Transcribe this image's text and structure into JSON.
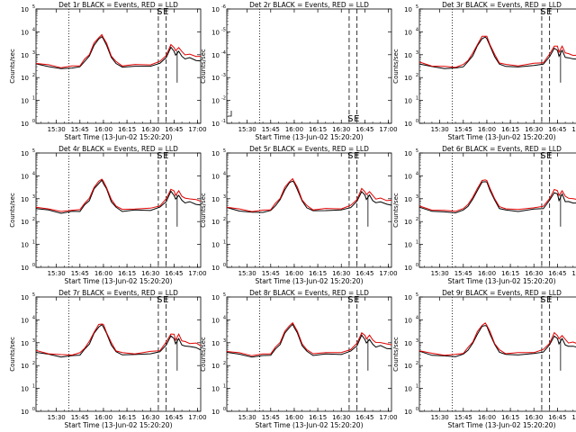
{
  "chart_data": {
    "type": "line",
    "x_label": "Start Time (13-Jun-02 15:20:20)",
    "y_label": "Counts/sec",
    "y_scale": "log",
    "x_range": [
      "15:17",
      "17:02"
    ],
    "x_ticks": [
      "15:30",
      "15:45",
      "16:00",
      "16:15",
      "16:30",
      "16:45",
      "17:00"
    ],
    "x_minutes": [
      690,
      705,
      720,
      735,
      750,
      765,
      780
    ],
    "series_legend": [
      "BLACK = Events",
      "RED = LLD"
    ],
    "colors": {
      "events": "#000000",
      "lld": "#e00000"
    },
    "markers": {
      "dotted_line": "15:38",
      "dashed_lines": [
        "16:35",
        "16:40"
      ],
      "labels": [
        "S",
        "E"
      ]
    },
    "profile": {
      "minutes": [
        677,
        685,
        693,
        700,
        705,
        708,
        711,
        714,
        717,
        719,
        720,
        722,
        725,
        728,
        732,
        740,
        750,
        756,
        760,
        763,
        765,
        766,
        768,
        770,
        772,
        775,
        779,
        782
      ],
      "events_counts": [
        400,
        300,
        250,
        260,
        300,
        500,
        900,
        2500,
        5000,
        6000,
        5000,
        2500,
        800,
        400,
        300,
        300,
        330,
        400,
        800,
        2000,
        1500,
        900,
        1500,
        800,
        700,
        700,
        600,
        500
      ],
      "lld_counts": [
        450,
        340,
        290,
        300,
        350,
        600,
        1100,
        3000,
        6000,
        7000,
        6000,
        3000,
        950,
        470,
        350,
        350,
        390,
        480,
        1000,
        2600,
        2200,
        1400,
        2200,
        1300,
        1050,
        1000,
        900,
        800
      ]
    },
    "panels": [
      {
        "title": "Det 1r BLACK = Events, RED = LLD",
        "y_ticks": [
          "10^0",
          "10^1",
          "10^2",
          "10^3",
          "10^4",
          "10^5"
        ],
        "y_range_exp": [
          0,
          5
        ],
        "has_data": true
      },
      {
        "title": "Det 2r BLACK = Events, RED = LLD",
        "y_ticks": [
          "10^-1",
          "10^-2",
          "10^-3",
          "10^-4",
          "10^-5",
          "10^-6"
        ],
        "y_range_exp": [
          -1,
          -6
        ],
        "has_data": false
      },
      {
        "title": "Det 3r BLACK = Events, RED = LLD",
        "y_ticks": [
          "10^0",
          "10^1",
          "10^2",
          "10^3",
          "10^4",
          "10^5"
        ],
        "y_range_exp": [
          0,
          5
        ],
        "has_data": true
      },
      {
        "title": "Det 4r BLACK = Events, RED = LLD",
        "y_ticks": [
          "10^0",
          "10^1",
          "10^2",
          "10^3",
          "10^4",
          "10^5"
        ],
        "y_range_exp": [
          0,
          5
        ],
        "has_data": true
      },
      {
        "title": "Det 5r BLACK = Events, RED = LLD",
        "y_ticks": [
          "10^0",
          "10^1",
          "10^2",
          "10^3",
          "10^4",
          "10^5"
        ],
        "y_range_exp": [
          0,
          5
        ],
        "has_data": true
      },
      {
        "title": "Det 6r BLACK = Events, RED = LLD",
        "y_ticks": [
          "10^0",
          "10^1",
          "10^2",
          "10^3",
          "10^4",
          "10^5"
        ],
        "y_range_exp": [
          0,
          5
        ],
        "has_data": true
      },
      {
        "title": "Det 7r BLACK = Events, RED = LLD",
        "y_ticks": [
          "10^0",
          "10^1",
          "10^2",
          "10^3",
          "10^4",
          "10^5"
        ],
        "y_range_exp": [
          0,
          5
        ],
        "has_data": true
      },
      {
        "title": "Det 8r BLACK = Events, RED = LLD",
        "y_ticks": [
          "10^0",
          "10^1",
          "10^2",
          "10^3",
          "10^4",
          "10^5"
        ],
        "y_range_exp": [
          0,
          5
        ],
        "has_data": true
      },
      {
        "title": "Det 9r BLACK = Events, RED = LLD",
        "y_ticks": [
          "10^0",
          "10^1",
          "10^2",
          "10^3",
          "10^4",
          "10^5"
        ],
        "y_range_exp": [
          0,
          5
        ],
        "has_data": true
      }
    ]
  }
}
